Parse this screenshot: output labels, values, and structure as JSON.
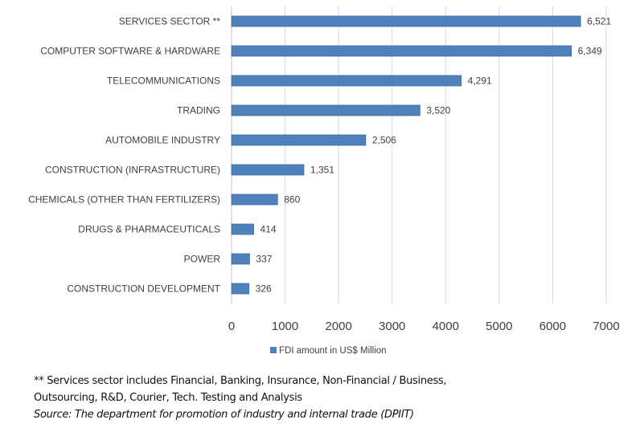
{
  "chart_data": {
    "type": "bar",
    "orientation": "horizontal",
    "title": "",
    "xlabel": "",
    "ylabel": "",
    "categories": [
      "SERVICES SECTOR **",
      "COMPUTER SOFTWARE & HARDWARE",
      "TELECOMMUNICATIONS",
      "TRADING",
      "AUTOMOBILE INDUSTRY",
      "CONSTRUCTION (INFRASTRUCTURE)",
      "CHEMICALS (OTHER THAN FERTILIZERS)",
      "DRUGS & PHARMACEUTICALS",
      "POWER",
      "CONSTRUCTION DEVELOPMENT"
    ],
    "series": [
      {
        "name": "FDI amount in US$ Million",
        "color": "#4F81BD",
        "values": [
          6521,
          6349,
          4291,
          3520,
          2506,
          1351,
          860,
          414,
          337,
          326
        ],
        "value_labels": [
          "6,521",
          "6,349",
          "4,291",
          "3,520",
          "2,506",
          "1,351",
          "860",
          "414",
          "337",
          "326"
        ]
      }
    ],
    "xlim": [
      0,
      7000
    ],
    "x_ticks": [
      0,
      1000,
      2000,
      3000,
      4000,
      5000,
      6000,
      7000
    ],
    "x_tick_labels": [
      "0",
      "1000",
      "2000",
      "3000",
      "4000",
      "5000",
      "6000",
      "7000"
    ],
    "grid": true,
    "legend": {
      "position": "bottom",
      "entries": [
        "FDI amount in US$ Million"
      ]
    }
  },
  "notes": {
    "footnote_line1": "** Services sector includes Financial, Banking, Insurance, Non-Financial / Business,",
    "footnote_line2": "Outsourcing, R&D, Courier, Tech. Testing and Analysis",
    "source": "Source: The department for promotion of industry and internal trade (DPIIT)"
  }
}
